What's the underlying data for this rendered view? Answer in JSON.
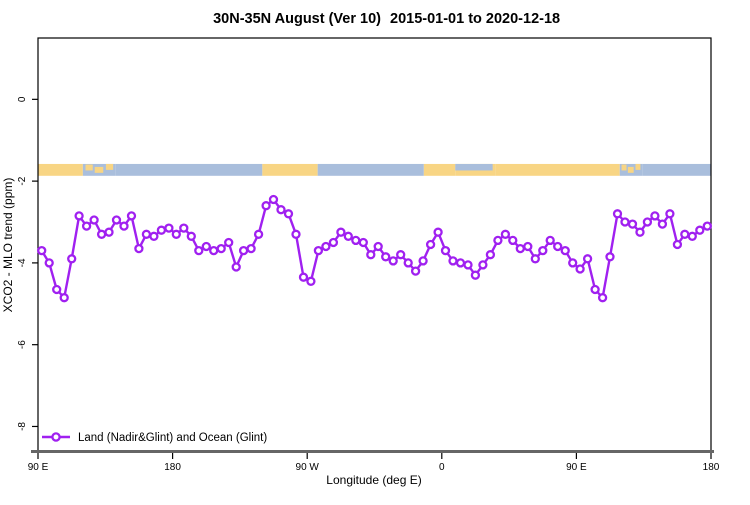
{
  "header": {
    "title_left": "30N-35N August (Ver 10)",
    "title_right": "2015-01-01 to 2020-12-18"
  },
  "colors": {
    "line": "#a020f0",
    "marker_fill": "#ffffff",
    "land": "#f8d584",
    "ocean": "#a9bedc",
    "axis_bottom": "#666666",
    "box": "#000000"
  },
  "chart_data": {
    "type": "line",
    "title": "30N-35N August (Ver 10)  2015-01-01 to 2020-12-18",
    "xlabel": "Longitude (deg E)",
    "ylabel": "XCO2 - MLO trend (ppm)",
    "series_name": "Land (Nadir&Glint) and Ocean (Glint)",
    "legend_position": "bottom-left",
    "grid": "off",
    "x_axis_note": "x measured in degrees east of 90E, wrapping 90E>180>90W>0>90E>180",
    "xlim": [
      0,
      450
    ],
    "ylim": [
      -8.6,
      1.5
    ],
    "x_ticks": {
      "pos": [
        0,
        90,
        180,
        270,
        360,
        450
      ],
      "labels": [
        "90 E",
        "180",
        "90 W",
        "0",
        "90 E",
        "180"
      ]
    },
    "y_ticks": {
      "pos": [
        0,
        -2,
        -4,
        -6,
        -8
      ],
      "labels": [
        "0",
        "-2",
        "-4",
        "-6",
        "-8"
      ]
    },
    "x_start": 2.5,
    "x_step": 5,
    "values": [
      -3.7,
      -4.0,
      -4.65,
      -4.85,
      -3.9,
      -2.85,
      -3.1,
      -2.95,
      -3.3,
      -3.25,
      -2.95,
      -3.1,
      -2.85,
      -3.65,
      -3.3,
      -3.35,
      -3.2,
      -3.15,
      -3.3,
      -3.15,
      -3.35,
      -3.7,
      -3.6,
      -3.7,
      -3.65,
      -3.5,
      -4.1,
      -3.7,
      -3.65,
      -3.3,
      -2.6,
      -2.45,
      -2.7,
      -2.8,
      -3.3,
      -4.35,
      -4.45,
      -3.7,
      -3.6,
      -3.5,
      -3.25,
      -3.35,
      -3.45,
      -3.5,
      -3.8,
      -3.6,
      -3.85,
      -3.95,
      -3.8,
      -4.0,
      -4.2,
      -3.95,
      -3.55,
      -3.25,
      -3.7,
      -3.95,
      -4.0,
      -4.05,
      -4.3,
      -4.05,
      -3.8,
      -3.45,
      -3.3,
      -3.45,
      -3.65,
      -3.6,
      -3.9,
      -3.7,
      -3.45,
      -3.6,
      -3.7,
      -4.0,
      -4.15,
      -3.9,
      -4.65,
      -4.85,
      -3.85,
      -2.8,
      -3.0,
      -3.05,
      -3.25,
      -3.0,
      -2.85,
      -3.05,
      -2.8,
      -3.55,
      -3.3,
      -3.35,
      -3.2,
      -3.1
    ],
    "map_strip": {
      "v_top": -1.58,
      "v_bottom": -1.87,
      "segments": [
        {
          "t0": 0,
          "t1": 30,
          "type": "land"
        },
        {
          "t0": 30,
          "t1": 52,
          "type": "mixed"
        },
        {
          "t0": 52,
          "t1": 150,
          "type": "ocean"
        },
        {
          "t0": 150,
          "t1": 187,
          "type": "land"
        },
        {
          "t0": 187,
          "t1": 258,
          "type": "ocean"
        },
        {
          "t0": 258,
          "t1": 279,
          "type": "land"
        },
        {
          "t0": 279,
          "t1": 306,
          "type": "med"
        },
        {
          "t0": 306,
          "t1": 389,
          "type": "land"
        },
        {
          "t0": 389,
          "t1": 404,
          "type": "mixed"
        },
        {
          "t0": 404,
          "t1": 450,
          "type": "ocean"
        }
      ]
    }
  }
}
